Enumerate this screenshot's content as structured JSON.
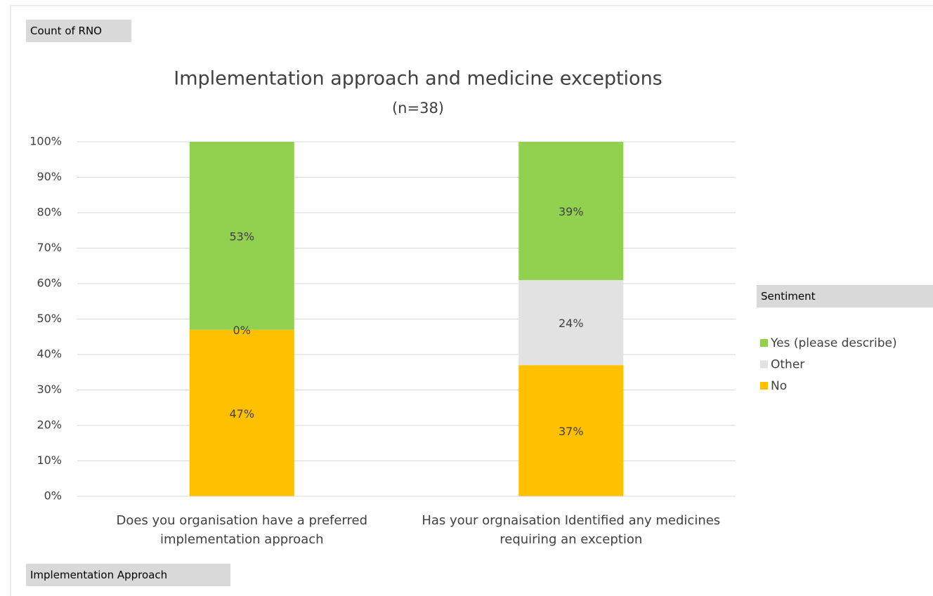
{
  "chart_data": {
    "type": "stacked_bar",
    "title": "Implementation approach and medicine exceptions",
    "subtitle": "(n=38)",
    "value_field": "Count of RNO",
    "axis_field": "Implementation Approach",
    "legend_title": "Sentiment",
    "legend": "right",
    "grid": true,
    "categories": [
      "Does you organisation have a preferred implementation approach",
      "Has your orgnaisation Identified any medicines requiring an exception"
    ],
    "series": [
      {
        "name": "No",
        "color": "#ffc000",
        "values": [
          47,
          37
        ],
        "value_labels": [
          "47%",
          "37%"
        ]
      },
      {
        "name": "Other",
        "color": "#e2e2e2",
        "values": [
          0,
          24
        ],
        "value_labels": [
          "0%",
          "24%"
        ]
      },
      {
        "name": "Yes (please describe)",
        "color": "#92d050",
        "values": [
          53,
          39
        ],
        "value_labels": [
          "53%",
          "39%"
        ]
      }
    ],
    "ylim": [
      0,
      100
    ],
    "yticks": [
      {
        "value": 0,
        "label": "0%"
      },
      {
        "value": 10,
        "label": "10%"
      },
      {
        "value": 20,
        "label": "20%"
      },
      {
        "value": 30,
        "label": "30%"
      },
      {
        "value": 40,
        "label": "40%"
      },
      {
        "value": 50,
        "label": "50%"
      },
      {
        "value": 60,
        "label": "60%"
      },
      {
        "value": 70,
        "label": "70%"
      },
      {
        "value": 80,
        "label": "80%"
      },
      {
        "value": 90,
        "label": "90%"
      },
      {
        "value": 100,
        "label": "100%"
      }
    ]
  }
}
